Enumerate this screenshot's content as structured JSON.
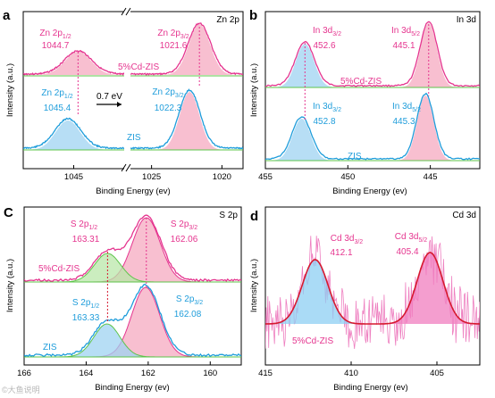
{
  "watermark": "©大鱼说明",
  "colors": {
    "pink": "#e5358f",
    "blue": "#1f9ddb",
    "green": "#5dc44a",
    "red": "#d6182f",
    "pink_fill": "#f6a9c0",
    "blue_fill": "#9fd3f1",
    "green_fill": "#b9e7a9",
    "cd_blue_fill": "#8ecff3",
    "cd_pink_fill": "#f07dbf",
    "noise": "#ee7fc0"
  },
  "chart_data": [
    {
      "id": "a",
      "letter": "a",
      "title": "Zn 2p",
      "type": "line",
      "xlabel": "Binding Energy (ev)",
      "ylabel": "Intensity (a.u.)",
      "x_reversed": true,
      "axis_break": true,
      "segments": [
        {
          "xlim": [
            1048.5,
            1041.5
          ]
        },
        {
          "xlim": [
            1026.5,
            1018.5
          ]
        }
      ],
      "xticks": [
        {
          "value": 1045,
          "label": "1045"
        },
        {
          "value": 1025,
          "label": "1025"
        },
        {
          "value": 1020,
          "label": "1020"
        }
      ],
      "series": [
        {
          "name": "5%Cd-ZIS",
          "peaks": [
            {
              "center": 1044.7,
              "height": 1.0
            },
            {
              "center": 1021.6,
              "height": 2.8
            }
          ]
        },
        {
          "name": "ZIS",
          "peaks": [
            {
              "center": 1045.4,
              "height": 1.1
            },
            {
              "center": 1022.3,
              "height": 3.0
            }
          ]
        }
      ],
      "annotations": [
        {
          "main": "Zn 2p",
          "sub": "1/2",
          "value": "1044.7",
          "color": "pink"
        },
        {
          "main": "Zn 2p",
          "sub": "3/2",
          "value": "1021.6",
          "color": "pink"
        },
        {
          "main": "Zn 2p",
          "sub": "1/2",
          "value": "1045.4",
          "color": "blue"
        },
        {
          "main": "Zn 2p",
          "sub": "3/2",
          "value": "1022.3",
          "color": "blue"
        }
      ],
      "shift_label": "0.7 eV",
      "series_labels": [
        "5%Cd-ZIS",
        "ZIS"
      ]
    },
    {
      "id": "b",
      "letter": "b",
      "title": "In 3d",
      "type": "line",
      "xlabel": "Binding Energy (ev)",
      "ylabel": "Intensity (a.u.)",
      "x_reversed": true,
      "xlim": [
        455,
        442
      ],
      "xticks": [
        455,
        450,
        445
      ],
      "series": [
        {
          "name": "5%Cd-ZIS",
          "peaks": [
            {
              "center": 452.6,
              "height": 2.0
            },
            {
              "center": 445.1,
              "height": 2.8
            }
          ]
        },
        {
          "name": "ZIS",
          "peaks": [
            {
              "center": 452.8,
              "height": 2.2
            },
            {
              "center": 445.3,
              "height": 2.9
            }
          ]
        }
      ],
      "annotations": [
        {
          "main": "In 3d",
          "sub": "3/2",
          "value": "452.6",
          "color": "pink"
        },
        {
          "main": "In 3d",
          "sub": "5/2",
          "value": "445.1",
          "color": "pink"
        },
        {
          "main": "In 3d",
          "sub": "3/2",
          "value": "452.8",
          "color": "blue"
        },
        {
          "main": "In 3d",
          "sub": "5/2",
          "value": "445.3",
          "color": "blue"
        }
      ],
      "series_labels": [
        "5%Cd-ZIS",
        "ZIS"
      ]
    },
    {
      "id": "c",
      "letter": "C",
      "title": "S 2p",
      "type": "line",
      "xlabel": "Binding Energy (ev)",
      "ylabel": "Intensity (a.u.)",
      "x_reversed": true,
      "xlim": [
        166,
        159
      ],
      "xticks": [
        166,
        164,
        162,
        160
      ],
      "series": [
        {
          "name": "5%Cd-ZIS",
          "peaks": [
            {
              "center": 163.31,
              "height": 1.2
            },
            {
              "center": 162.06,
              "height": 2.1
            }
          ]
        },
        {
          "name": "ZIS",
          "peaks": [
            {
              "center": 163.33,
              "height": 1.1
            },
            {
              "center": 162.08,
              "height": 2.0
            }
          ]
        }
      ],
      "annotations": [
        {
          "main": "S 2p",
          "sub": "1/2",
          "value": "163.31",
          "color": "pink"
        },
        {
          "main": "S 2p",
          "sub": "3/2",
          "value": "162.06",
          "color": "pink"
        },
        {
          "main": "S 2p",
          "sub": "1/2",
          "value": "163.33",
          "color": "blue"
        },
        {
          "main": "S 2p",
          "sub": "3/2",
          "value": "162.08",
          "color": "blue"
        }
      ],
      "series_labels": [
        "5%Cd-ZIS",
        "ZIS"
      ]
    },
    {
      "id": "d",
      "letter": "d",
      "title": "Cd 3d",
      "type": "line",
      "xlabel": "Binding Energy (ev)",
      "ylabel": "Intensity (a.u.)",
      "x_reversed": true,
      "xlim": [
        415,
        402.5
      ],
      "xticks": [
        415,
        410,
        405
      ],
      "series": [
        {
          "name": "5%Cd-ZIS",
          "peaks": [
            {
              "center": 412.1,
              "height": 1.0
            },
            {
              "center": 405.4,
              "height": 1.1
            }
          ]
        }
      ],
      "annotations": [
        {
          "main": "Cd 3d",
          "sub": "3/2",
          "value": "412.1",
          "color": "pink"
        },
        {
          "main": "Cd 3d",
          "sub": "5/2",
          "value": "405.4",
          "color": "pink"
        }
      ],
      "series_labels": [
        "5%Cd-ZIS"
      ]
    }
  ]
}
